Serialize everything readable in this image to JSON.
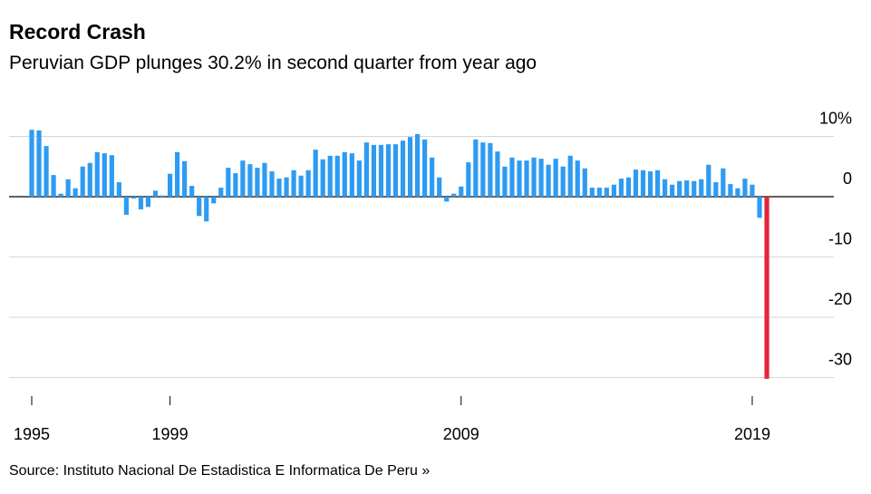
{
  "chart_data": {
    "type": "bar",
    "title": "Record Crash",
    "subtitle": "Peruvian GDP plunges 30.2% in second quarter from year ago",
    "source": "Source: Instituto Nacional De Estadistica E Informatica De Peru »",
    "categories": [
      "1995",
      null,
      null,
      null,
      null,
      null,
      null,
      null,
      null,
      null,
      null,
      null,
      null,
      null,
      null,
      null,
      null,
      null,
      null,
      "1999",
      null,
      null,
      null,
      null,
      null,
      null,
      null,
      null,
      null,
      null,
      null,
      null,
      null,
      null,
      null,
      null,
      null,
      null,
      null,
      null,
      null,
      null,
      null,
      null,
      null,
      null,
      null,
      null,
      null,
      null,
      null,
      null,
      null,
      null,
      null,
      null,
      null,
      null,
      null,
      "2009",
      null,
      null,
      null,
      null,
      null,
      null,
      null,
      null,
      null,
      null,
      null,
      null,
      null,
      null,
      null,
      null,
      null,
      null,
      null,
      null,
      null,
      null,
      null,
      null,
      null,
      null,
      null,
      null,
      null,
      null,
      null,
      null,
      null,
      null,
      null,
      null,
      null,
      null,
      null,
      "2019",
      null,
      null
    ],
    "values": [
      11.1,
      11.0,
      8.4,
      3.6,
      0.5,
      2.9,
      1.4,
      5.0,
      5.6,
      7.4,
      7.2,
      6.9,
      2.4,
      -3.0,
      -0.3,
      -2.1,
      -1.7,
      1.0,
      0.2,
      3.8,
      7.4,
      5.9,
      1.8,
      -3.2,
      -4.1,
      -1.1,
      1.5,
      4.8,
      3.9,
      6.0,
      5.4,
      4.8,
      5.6,
      4.2,
      3.0,
      3.2,
      4.4,
      3.5,
      4.4,
      7.8,
      6.2,
      6.8,
      6.8,
      7.4,
      7.2,
      6.0,
      9.0,
      8.6,
      8.6,
      8.7,
      8.7,
      9.3,
      9.9,
      10.4,
      9.5,
      6.5,
      3.2,
      -0.8,
      0.5,
      1.7,
      5.7,
      9.5,
      9.0,
      8.9,
      7.5,
      5.0,
      6.5,
      6.0,
      6.0,
      6.5,
      6.3,
      5.3,
      6.3,
      5.0,
      6.8,
      6.0,
      4.7,
      1.5,
      1.5,
      1.5,
      2.0,
      3.0,
      3.2,
      4.5,
      4.4,
      4.2,
      4.4,
      2.9,
      2.0,
      2.6,
      2.7,
      2.6,
      2.9,
      5.3,
      2.4,
      4.7,
      2.1,
      1.4,
      3.0,
      2.0,
      -3.5,
      -30.2
    ],
    "color": "#2e9bf2",
    "highlight_color": "#e3253d",
    "ylim": [
      -31.5,
      14.5
    ],
    "yticks": [
      {
        "value": 10,
        "label": "10%"
      },
      0,
      -10,
      -20,
      -30
    ],
    "grid": true
  }
}
